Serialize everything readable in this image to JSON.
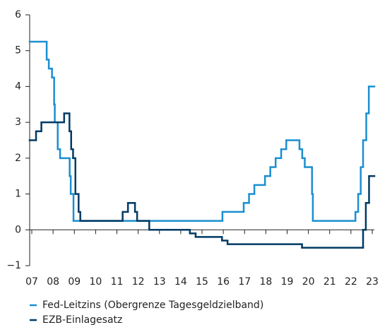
{
  "chart_data": {
    "type": "step",
    "xlim": [
      2006.9,
      2023.1
    ],
    "xticks": [
      {
        "value": 2007,
        "label": "07"
      },
      {
        "value": 2008,
        "label": "08"
      },
      {
        "value": 2009,
        "label": "09"
      },
      {
        "value": 2010,
        "label": "10"
      },
      {
        "value": 2011,
        "label": "11"
      },
      {
        "value": 2012,
        "label": "12"
      },
      {
        "value": 2013,
        "label": "13"
      },
      {
        "value": 2014,
        "label": "14"
      },
      {
        "value": 2015,
        "label": "15"
      },
      {
        "value": 2016,
        "label": "16"
      },
      {
        "value": 2017,
        "label": "17"
      },
      {
        "value": 2018,
        "label": "18"
      },
      {
        "value": 2019,
        "label": "19"
      },
      {
        "value": 2020,
        "label": "20"
      },
      {
        "value": 2021,
        "label": "21"
      },
      {
        "value": 2022,
        "label": "22"
      },
      {
        "value": 2023,
        "label": "23"
      }
    ],
    "ylim": [
      -1,
      6
    ],
    "yticks": [
      {
        "value": -1,
        "label": "−1"
      },
      0,
      1,
      2,
      3,
      4,
      5,
      6
    ],
    "series": [
      {
        "name": "Fed-Leitzins (Obergrenze Tagesgeldzielband)",
        "color": "#1a8fd1",
        "x": [
          2006.9,
          2007.7,
          2007.8,
          2007.95,
          2008.05,
          2008.08,
          2008.22,
          2008.33,
          2008.78,
          2008.83,
          2008.96,
          2015.96,
          2016.96,
          2017.21,
          2017.46,
          2017.96,
          2018.21,
          2018.46,
          2018.72,
          2018.96,
          2019.58,
          2019.71,
          2019.83,
          2020.17,
          2020.21,
          2022.21,
          2022.34,
          2022.46,
          2022.57,
          2022.72,
          2022.84
        ],
        "values": [
          5.25,
          4.75,
          4.5,
          4.25,
          3.5,
          3.0,
          2.25,
          2.0,
          1.5,
          1.0,
          0.25,
          0.5,
          0.75,
          1.0,
          1.25,
          1.5,
          1.75,
          2.0,
          2.25,
          2.5,
          2.25,
          2.0,
          1.75,
          1.0,
          0.25,
          0.5,
          1.0,
          1.75,
          2.5,
          3.25,
          4.0
        ]
      },
      {
        "name": "EZB-Einlagesatz",
        "color": "#003a63",
        "x": [
          2006.9,
          2007.2,
          2007.45,
          2008.52,
          2008.77,
          2008.85,
          2008.94,
          2009.05,
          2009.2,
          2009.28,
          2011.27,
          2011.52,
          2011.85,
          2011.95,
          2012.52,
          2014.43,
          2014.7,
          2015.94,
          2016.2,
          2019.7,
          2022.57,
          2022.7,
          2022.85
        ],
        "values": [
          2.5,
          2.75,
          3.0,
          3.25,
          2.75,
          2.25,
          2.0,
          1.0,
          0.5,
          0.25,
          0.5,
          0.75,
          0.5,
          0.25,
          0.0,
          -0.1,
          -0.2,
          -0.3,
          -0.4,
          -0.5,
          0.0,
          0.75,
          1.5
        ]
      }
    ]
  }
}
